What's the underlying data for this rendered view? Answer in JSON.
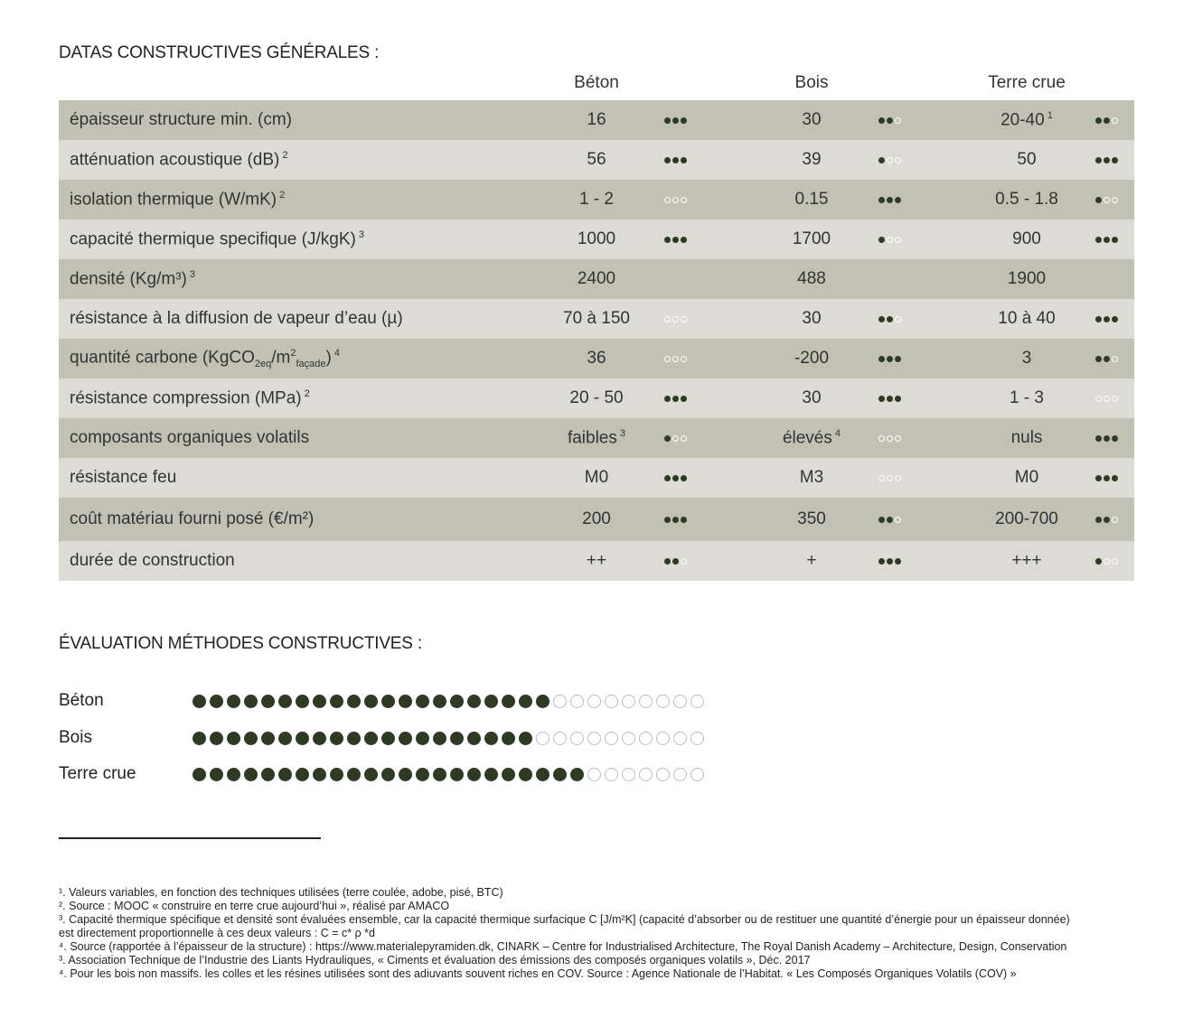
{
  "title": "DATAS CONSTRUCTIVES GÉNÉRALES :",
  "columns": [
    "Béton",
    "Bois",
    "Terre crue"
  ],
  "rows": [
    {
      "label": "épaisseur structure min. (cm)",
      "sup": "",
      "values": [
        "16",
        "30",
        "20-40"
      ],
      "vsup": [
        "",
        "",
        "1"
      ],
      "ratings": [
        3,
        2,
        2
      ]
    },
    {
      "label": "atténuation acoustique (dB)",
      "sup": "2",
      "values": [
        "56",
        "39",
        "50"
      ],
      "vsup": [
        "",
        "",
        ""
      ],
      "ratings": [
        3,
        1,
        3
      ]
    },
    {
      "label": "isolation thermique (W/mK)",
      "sup": "2",
      "values": [
        "1 - 2",
        "0.15",
        "0.5 - 1.8"
      ],
      "vsup": [
        "",
        "",
        ""
      ],
      "ratings": [
        0,
        3,
        1
      ]
    },
    {
      "label": "capacité thermique specifique (J/kgK)",
      "sup": "3",
      "values": [
        "1000",
        "1700",
        "900"
      ],
      "vsup": [
        "",
        "",
        ""
      ],
      "ratings": [
        3,
        1,
        3
      ]
    },
    {
      "label": "densité (Kg/m³)",
      "sup": "3",
      "values": [
        "2400",
        "488",
        "1900"
      ],
      "vsup": [
        "",
        "",
        ""
      ],
      "ratings": [
        null,
        null,
        null
      ]
    },
    {
      "label": "résistance à la diffusion de vapeur d’eau (µ)",
      "sup": "",
      "values": [
        "70 à 150",
        "30",
        "10 à 40"
      ],
      "vsup": [
        "",
        "",
        ""
      ],
      "ratings": [
        0,
        2,
        3
      ]
    },
    {
      "label": "quantité carbone (KgCO",
      "sub1": "2eq",
      "mid": "/m",
      "supm": "2",
      "sub2": "façade",
      "end": ")",
      "sup": "4",
      "values": [
        "36",
        "-200",
        "3"
      ],
      "vsup": [
        "",
        "",
        ""
      ],
      "ratings": [
        0,
        3,
        2
      ]
    },
    {
      "label": "résistance compression (MPa)",
      "sup": "2",
      "values": [
        "20 - 50",
        "30",
        "1 - 3"
      ],
      "vsup": [
        "",
        "",
        ""
      ],
      "ratings": [
        3,
        3,
        0
      ]
    },
    {
      "label": "composants organiques volatils",
      "sup": "",
      "values": [
        "faibles",
        "élevés",
        "nuls"
      ],
      "vsup": [
        "3",
        "4",
        ""
      ],
      "ratings": [
        1,
        0,
        3
      ]
    },
    {
      "label": "résistance feu",
      "sup": "",
      "values": [
        "M0",
        "M3",
        "M0"
      ],
      "vsup": [
        "",
        "",
        ""
      ],
      "ratings": [
        3,
        0,
        3
      ]
    },
    {
      "label": "coût matériau fourni posé (€/m²)",
      "sup": "",
      "values": [
        "200",
        "350",
        "200-700"
      ],
      "vsup": [
        "",
        "",
        ""
      ],
      "ratings": [
        3,
        2,
        2
      ]
    },
    {
      "label": "durée de construction",
      "sup": "",
      "values": [
        "++",
        "+",
        "+++"
      ],
      "vsup": [
        "",
        "",
        ""
      ],
      "ratings": [
        2,
        3,
        1
      ]
    }
  ],
  "evaluation_title": "ÉVALUATION MÉTHODES CONSTRUCTIVES :",
  "evaluation": [
    {
      "name": "Béton",
      "filled": 21,
      "total": 30
    },
    {
      "name": "Bois",
      "filled": 20,
      "total": 30
    },
    {
      "name": "Terre crue",
      "filled": 23,
      "total": 30
    }
  ],
  "footnotes": [
    "¹. Valeurs variables, en fonction des techniques utilisées (terre coulée, adobe, pisé, BTC)",
    "². Source : MOOC « construire en terre crue aujourd’hui », réalisé par AMACO",
    "³. Capacité thermique spécifique et densité sont évaluées ensemble, car la capacité thermique surfacique C [J/m²K] (capacité d’absorber ou de restituer une quantité d’énergie pour un épaisseur donnée)",
    "est directement proportionnelle à ces deux valeurs : C = c* ρ *d",
    "⁴. Source (rapportée à l’épaisseur de la structure) : https://www.materialepyramiden.dk, CINARK – Centre for Industrialised Architecture, The Royal Danish Academy – Architecture, Design, Conservation",
    "³. Association Technique de l’Industrie des Liants Hydrauliques, « Ciments et évaluation des émissions des composés organiques volatils », Déc. 2017",
    "⁴. Pour les bois non massifs. les colles et les résines utilisées sont des adiuvants souvent riches en COV. Source : Agence Nationale de l’Habitat. « Les Composés Organiques Volatils (COV) »"
  ]
}
